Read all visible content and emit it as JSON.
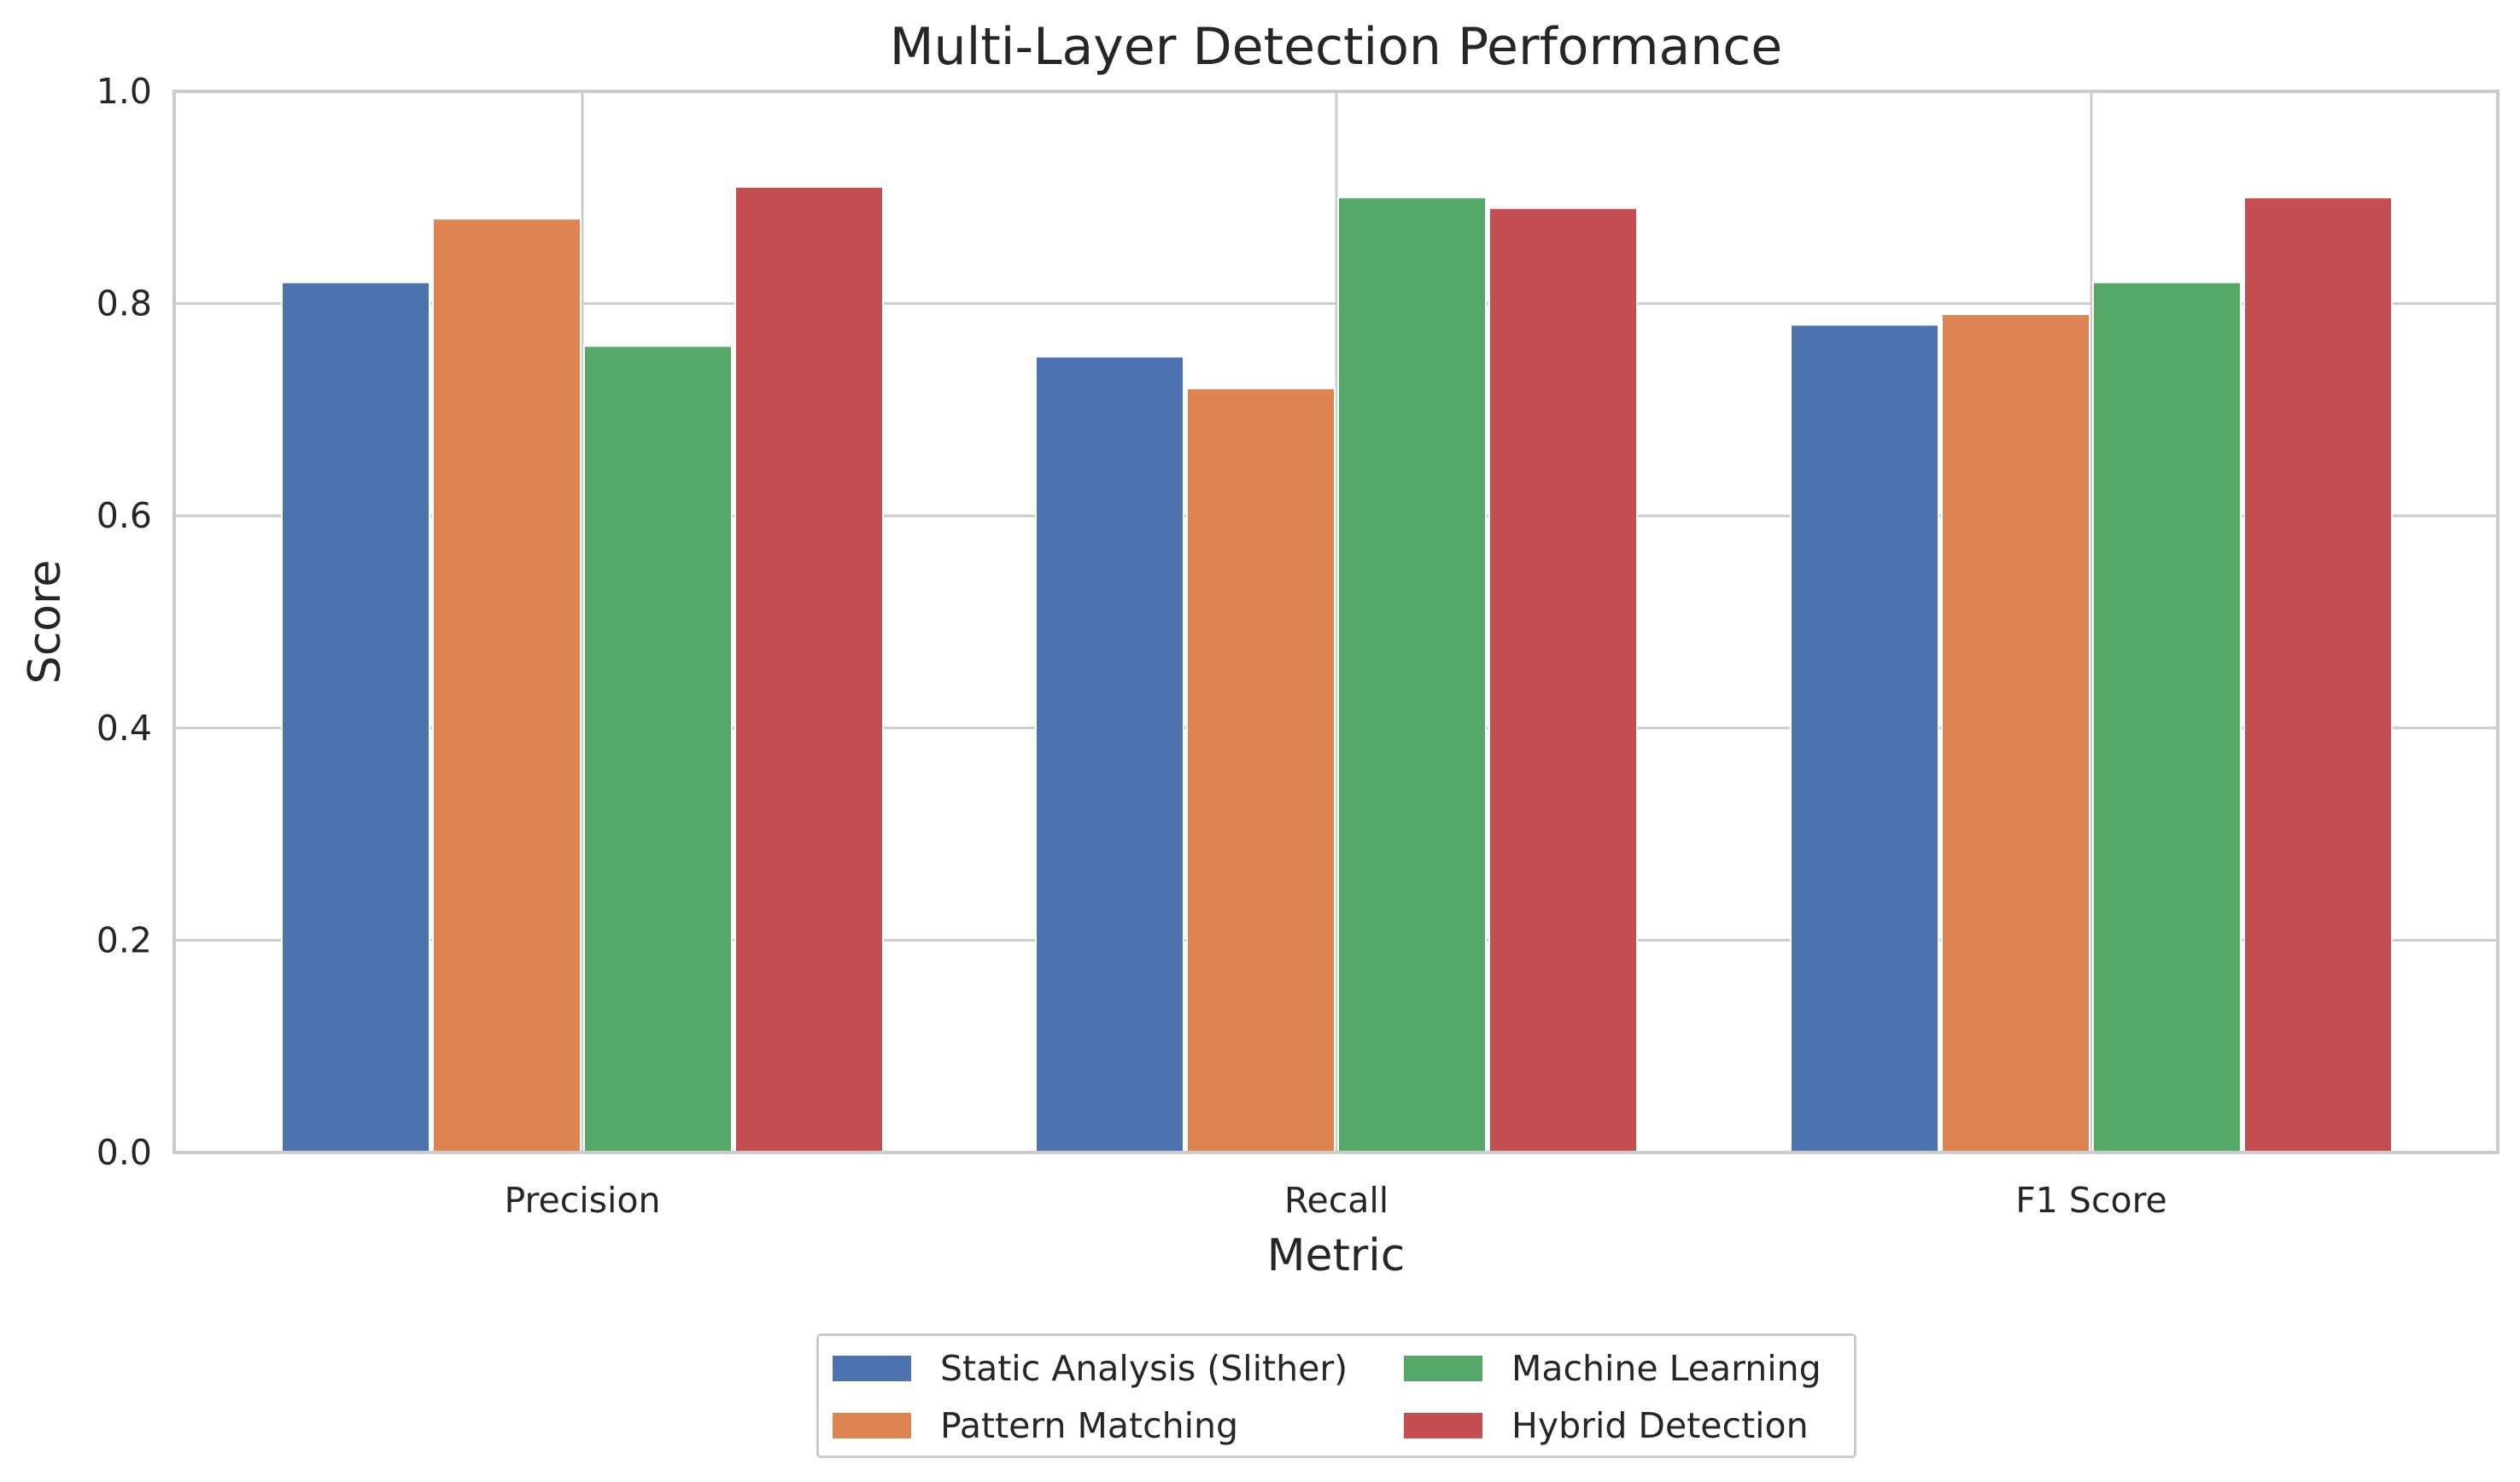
{
  "chart_data": {
    "type": "bar",
    "title": "Multi-Layer Detection Performance",
    "xlabel": "Metric",
    "ylabel": "Score",
    "categories": [
      "Precision",
      "Recall",
      "F1 Score"
    ],
    "ylim": [
      0,
      1.0
    ],
    "yticks": [
      "0.0",
      "0.2",
      "0.4",
      "0.6",
      "0.8",
      "1.0"
    ],
    "grid": true,
    "legend_position": "bottom-center",
    "series": [
      {
        "name": "Static Analysis (Slither)",
        "color": "#4c72b0",
        "values": [
          0.82,
          0.75,
          0.78
        ]
      },
      {
        "name": "Pattern Matching",
        "color": "#dd8452",
        "values": [
          0.88,
          0.72,
          0.79
        ]
      },
      {
        "name": "Machine Learning",
        "color": "#55a868",
        "values": [
          0.76,
          0.9,
          0.82
        ]
      },
      {
        "name": "Hybrid Detection",
        "color": "#c44e52",
        "values": [
          0.91,
          0.89,
          0.9
        ]
      }
    ]
  }
}
